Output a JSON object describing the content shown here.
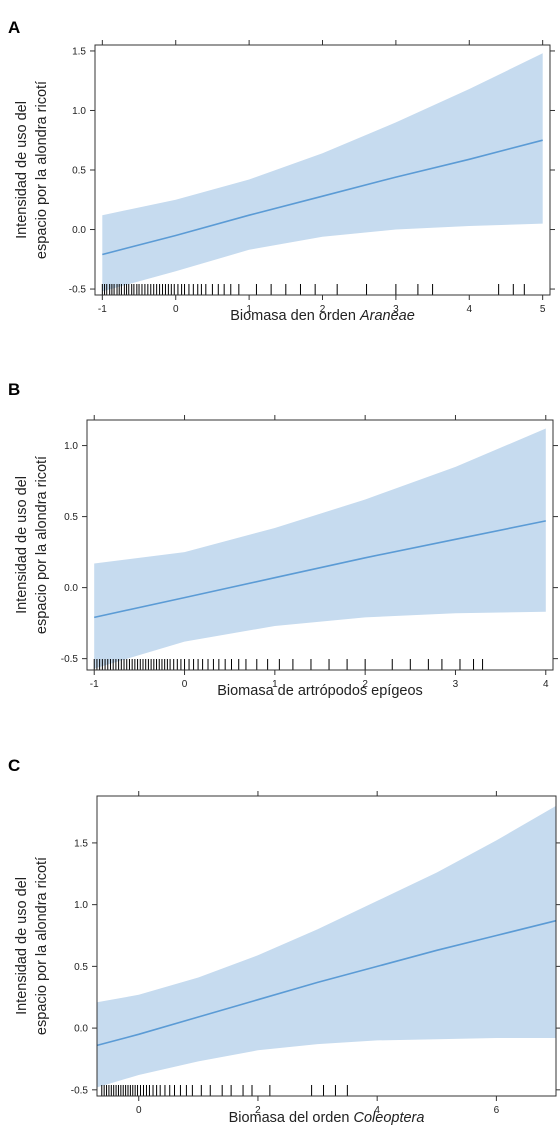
{
  "chart_data": [
    {
      "panel": "A",
      "type": "line",
      "xlabel_prefix": "Biomasa den orden ",
      "xlabel_italic": "Araneae",
      "ylabel_lines": [
        "Intensidad de uso del",
        "espacio por la alondra ricotí"
      ],
      "xlim": [
        -1.1,
        5.1
      ],
      "ylim": [
        -0.55,
        1.55
      ],
      "xticks": [
        -1,
        0,
        1,
        2,
        3,
        4,
        5
      ],
      "xtick_labels": [
        "-1",
        "0",
        "1",
        "2",
        "3",
        "4",
        "5"
      ],
      "yticks": [
        -0.5,
        0.0,
        0.5,
        1.0,
        1.5
      ],
      "ytick_labels": [
        "-0.5",
        "0.0",
        "0.5",
        "1.0",
        "1.5"
      ],
      "series": [
        {
          "x": [
            -1,
            0,
            1,
            2,
            3,
            4,
            5
          ],
          "y": [
            -0.21,
            -0.05,
            0.12,
            0.28,
            0.44,
            0.59,
            0.75
          ],
          "lower": [
            -0.52,
            -0.35,
            -0.17,
            -0.06,
            0.0,
            0.03,
            0.05
          ],
          "upper": [
            0.12,
            0.25,
            0.42,
            0.64,
            0.9,
            1.18,
            1.48
          ]
        }
      ],
      "rug": [
        -1,
        -0.97,
        -0.94,
        -0.9,
        -0.87,
        -0.84,
        -0.8,
        -0.77,
        -0.74,
        -0.7,
        -0.67,
        -0.64,
        -0.6,
        -0.57,
        -0.53,
        -0.5,
        -0.46,
        -0.42,
        -0.38,
        -0.34,
        -0.3,
        -0.26,
        -0.22,
        -0.18,
        -0.14,
        -0.1,
        -0.06,
        -0.02,
        0.03,
        0.08,
        0.12,
        0.18,
        0.24,
        0.3,
        0.35,
        0.41,
        0.5,
        0.58,
        0.66,
        0.75,
        0.86,
        1.1,
        1.3,
        1.5,
        1.7,
        1.9,
        2.2,
        2.6,
        3.0,
        3.3,
        3.5,
        4.4,
        4.6,
        4.75
      ],
      "color": "#5b9bd5",
      "band_color": "#c6dbef"
    },
    {
      "panel": "B",
      "type": "line",
      "xlabel_prefix": "Biomasa de artrópodos epígeos",
      "xlabel_italic": "",
      "ylabel_lines": [
        "Intensidad de uso del",
        "espacio por la alondra ricotí"
      ],
      "xlim": [
        -1.08,
        4.08
      ],
      "ylim": [
        -0.58,
        1.18
      ],
      "xticks": [
        -1,
        0,
        1,
        2,
        3,
        4
      ],
      "xtick_labels": [
        "-1",
        "0",
        "1",
        "2",
        "3",
        "4"
      ],
      "yticks": [
        -0.5,
        0.0,
        0.5,
        1.0
      ],
      "ytick_labels": [
        "-0.5",
        "0.0",
        "0.5",
        "1.0"
      ],
      "series": [
        {
          "x": [
            -1,
            0,
            1,
            2,
            3,
            4
          ],
          "y": [
            -0.21,
            -0.07,
            0.07,
            0.21,
            0.34,
            0.47
          ],
          "lower": [
            -0.57,
            -0.38,
            -0.27,
            -0.21,
            -0.18,
            -0.17
          ],
          "upper": [
            0.17,
            0.25,
            0.42,
            0.62,
            0.85,
            1.12
          ]
        }
      ],
      "rug": [
        -1,
        -0.97,
        -0.94,
        -0.91,
        -0.88,
        -0.85,
        -0.82,
        -0.79,
        -0.76,
        -0.73,
        -0.7,
        -0.67,
        -0.64,
        -0.61,
        -0.58,
        -0.55,
        -0.52,
        -0.49,
        -0.46,
        -0.43,
        -0.4,
        -0.37,
        -0.34,
        -0.31,
        -0.28,
        -0.25,
        -0.22,
        -0.19,
        -0.16,
        -0.12,
        -0.08,
        -0.04,
        0.0,
        0.05,
        0.1,
        0.15,
        0.2,
        0.26,
        0.32,
        0.38,
        0.45,
        0.52,
        0.6,
        0.68,
        0.8,
        0.92,
        1.05,
        1.2,
        1.4,
        1.6,
        1.8,
        2.0,
        2.3,
        2.5,
        2.7,
        2.85,
        3.05,
        3.2,
        3.3
      ],
      "color": "#5b9bd5",
      "band_color": "#c6dbef"
    },
    {
      "panel": "C",
      "type": "line",
      "xlabel_prefix": "Biomasa del orden ",
      "xlabel_italic": "Coleoptera",
      "ylabel_lines": [
        "Intensidad de uso del",
        "espacio por la alondra ricotí"
      ],
      "xlim": [
        -0.7,
        7.0
      ],
      "ylim": [
        -0.55,
        1.88
      ],
      "xticks": [
        0,
        2,
        4,
        6
      ],
      "xtick_labels": [
        "0",
        "2",
        "4",
        "6"
      ],
      "yticks": [
        -0.5,
        0.0,
        0.5,
        1.0,
        1.5
      ],
      "ytick_labels": [
        "-0.5",
        "0.0",
        "0.5",
        "1.0",
        "1.5"
      ],
      "series": [
        {
          "x": [
            -0.7,
            0,
            1,
            2,
            3,
            4,
            5,
            6,
            7
          ],
          "y": [
            -0.14,
            -0.05,
            0.09,
            0.23,
            0.37,
            0.5,
            0.63,
            0.75,
            0.87
          ],
          "lower": [
            -0.48,
            -0.38,
            -0.27,
            -0.18,
            -0.13,
            -0.1,
            -0.09,
            -0.08,
            -0.08
          ],
          "upper": [
            0.21,
            0.27,
            0.41,
            0.59,
            0.8,
            1.03,
            1.26,
            1.52,
            1.8
          ]
        }
      ],
      "rug": [
        -0.62,
        -0.58,
        -0.54,
        -0.5,
        -0.46,
        -0.42,
        -0.38,
        -0.34,
        -0.3,
        -0.26,
        -0.22,
        -0.18,
        -0.14,
        -0.1,
        -0.06,
        -0.02,
        0.03,
        0.08,
        0.13,
        0.18,
        0.24,
        0.3,
        0.36,
        0.44,
        0.52,
        0.6,
        0.7,
        0.8,
        0.9,
        1.05,
        1.2,
        1.4,
        1.55,
        1.75,
        1.9,
        2.2,
        2.9,
        3.1,
        3.3,
        3.5
      ],
      "color": "#5b9bd5",
      "band_color": "#c6dbef"
    }
  ]
}
